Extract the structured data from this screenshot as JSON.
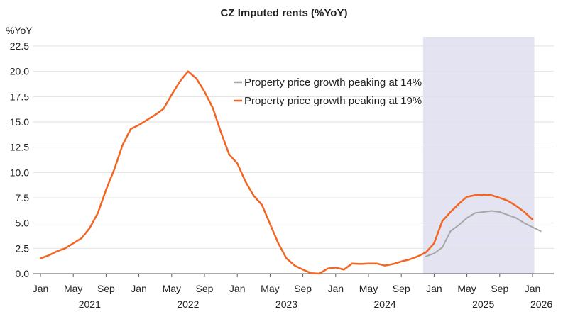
{
  "chart_data": {
    "type": "line",
    "title": "CZ Imputed rents (%YoY)",
    "ylabel": "%YoY",
    "ylim": [
      0,
      22.5
    ],
    "yticks": [
      "0.0",
      "2.5",
      "5.0",
      "7.5",
      "10.0",
      "12.5",
      "15.0",
      "17.5",
      "20.0",
      "22.5"
    ],
    "xlim": [
      0,
      61
    ],
    "month_ticks": [
      {
        "label": "Jan",
        "i": 0
      },
      {
        "label": "May",
        "i": 4
      },
      {
        "label": "Sep",
        "i": 8
      },
      {
        "label": "Jan",
        "i": 12
      },
      {
        "label": "May",
        "i": 16
      },
      {
        "label": "Sep",
        "i": 20
      },
      {
        "label": "Jan",
        "i": 24
      },
      {
        "label": "May",
        "i": 28
      },
      {
        "label": "Sep",
        "i": 32
      },
      {
        "label": "Jan",
        "i": 36
      },
      {
        "label": "May",
        "i": 40
      },
      {
        "label": "Sep",
        "i": 44
      },
      {
        "label": "Jan",
        "i": 48
      },
      {
        "label": "May",
        "i": 52
      },
      {
        "label": "Sep",
        "i": 56
      },
      {
        "label": "Jan",
        "i": 60
      }
    ],
    "year_labels": [
      {
        "label": "2021",
        "i": 6
      },
      {
        "label": "2022",
        "i": 18
      },
      {
        "label": "2023",
        "i": 30
      },
      {
        "label": "2024",
        "i": 42
      },
      {
        "label": "2025",
        "i": 54
      },
      {
        "label": "2026",
        "i": 61
      }
    ],
    "forecast_region": {
      "start": 47,
      "end": 61,
      "color": "#e3e3f2"
    },
    "series": [
      {
        "name": "Property price growth peaking at 14%",
        "color": "#a6a6a6",
        "start": 47,
        "values": [
          1.7,
          2.0,
          2.6,
          4.2,
          4.8,
          5.5,
          6.0,
          6.1,
          6.2,
          6.1,
          5.8,
          5.5,
          5.0,
          4.6,
          4.2
        ]
      },
      {
        "name": "Property price growth peaking at 19%",
        "color": "#f26522",
        "start": 0,
        "values": [
          1.5,
          1.8,
          2.2,
          2.5,
          3.0,
          3.5,
          4.5,
          6.0,
          8.3,
          10.3,
          12.7,
          14.3,
          14.7,
          15.2,
          15.7,
          16.3,
          17.7,
          19.0,
          20.0,
          19.3,
          18.0,
          16.4,
          14.0,
          11.8,
          10.9,
          9.1,
          7.7,
          6.8,
          4.9,
          3.0,
          1.5,
          0.8,
          0.4,
          0.05,
          0.0,
          0.5,
          0.6,
          0.4,
          1.0,
          0.95,
          1.0,
          1.0,
          0.8,
          0.95,
          1.2,
          1.4,
          1.7,
          2.1,
          3.0,
          5.2,
          6.1,
          6.9,
          7.6,
          7.75,
          7.8,
          7.75,
          7.5,
          7.2,
          6.7,
          6.1,
          5.35
        ]
      }
    ],
    "legend_position": "top-center"
  }
}
